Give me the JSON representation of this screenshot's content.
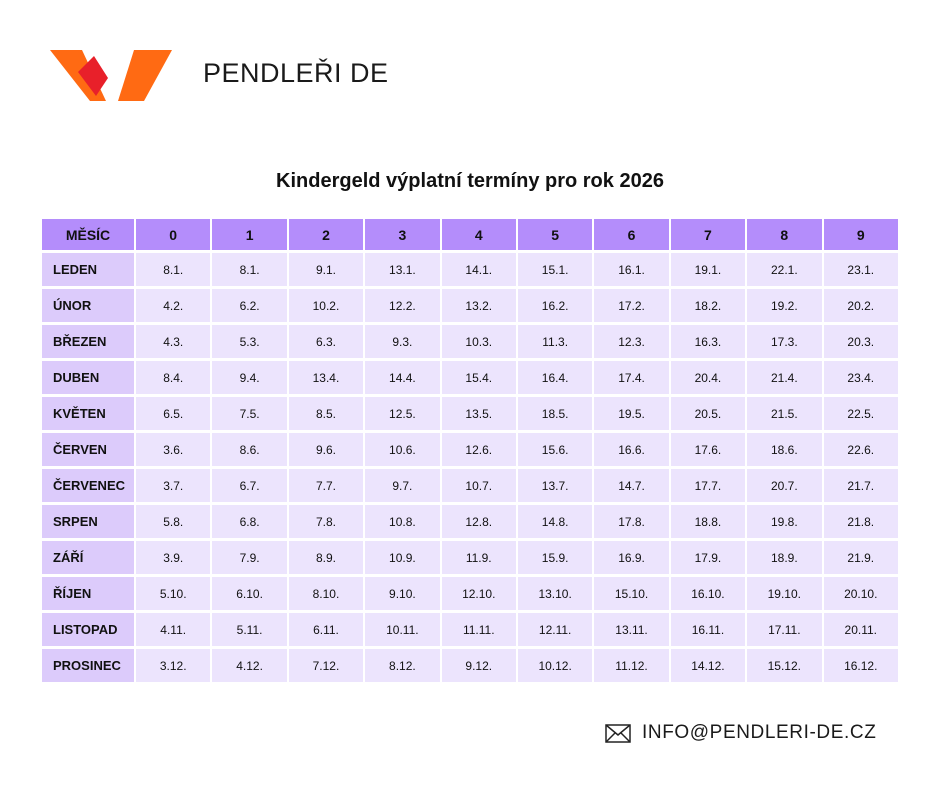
{
  "header": {
    "brand": "PENDLEŘI DE"
  },
  "title": "Kindergeld výplatní termíny pro rok 2026",
  "table": {
    "header": [
      "MĚSÍC",
      "0",
      "1",
      "2",
      "3",
      "4",
      "5",
      "6",
      "7",
      "8",
      "9"
    ],
    "rows": [
      [
        "LEDEN",
        "8.1.",
        "8.1.",
        "9.1.",
        "13.1.",
        "14.1.",
        "15.1.",
        "16.1.",
        "19.1.",
        "22.1.",
        "23.1."
      ],
      [
        "ÚNOR",
        "4.2.",
        "6.2.",
        "10.2.",
        "12.2.",
        "13.2.",
        "16.2.",
        "17.2.",
        "18.2.",
        "19.2.",
        "20.2."
      ],
      [
        "BŘEZEN",
        "4.3.",
        "5.3.",
        "6.3.",
        "9.3.",
        "10.3.",
        "11.3.",
        "12.3.",
        "16.3.",
        "17.3.",
        "20.3."
      ],
      [
        "DUBEN",
        "8.4.",
        "9.4.",
        "13.4.",
        "14.4.",
        "15.4.",
        "16.4.",
        "17.4.",
        "20.4.",
        "21.4.",
        "23.4."
      ],
      [
        "KVĚTEN",
        "6.5.",
        "7.5.",
        "8.5.",
        "12.5.",
        "13.5.",
        "18.5.",
        "19.5.",
        "20.5.",
        "21.5.",
        "22.5."
      ],
      [
        "ČERVEN",
        "3.6.",
        "8.6.",
        "9.6.",
        "10.6.",
        "12.6.",
        "15.6.",
        "16.6.",
        "17.6.",
        "18.6.",
        "22.6."
      ],
      [
        "ČERVENEC",
        "3.7.",
        "6.7.",
        "7.7.",
        "9.7.",
        "10.7.",
        "13.7.",
        "14.7.",
        "17.7.",
        "20.7.",
        "21.7."
      ],
      [
        "SRPEN",
        "5.8.",
        "6.8.",
        "7.8.",
        "10.8.",
        "12.8.",
        "14.8.",
        "17.8.",
        "18.8.",
        "19.8.",
        "21.8."
      ],
      [
        "ZÁŘÍ",
        "3.9.",
        "7.9.",
        "8.9.",
        "10.9.",
        "11.9.",
        "15.9.",
        "16.9.",
        "17.9.",
        "18.9.",
        "21.9."
      ],
      [
        "ŘÍJEN",
        "5.10.",
        "6.10.",
        "8.10.",
        "9.10.",
        "12.10.",
        "13.10.",
        "15.10.",
        "16.10.",
        "19.10.",
        "20.10."
      ],
      [
        "LISTOPAD",
        "4.11.",
        "5.11.",
        "6.11.",
        "10.11.",
        "11.11.",
        "12.11.",
        "13.11.",
        "16.11.",
        "17.11.",
        "20.11."
      ],
      [
        "PROSINEC",
        "3.12.",
        "4.12.",
        "7.12.",
        "8.12.",
        "9.12.",
        "10.12.",
        "11.12.",
        "14.12.",
        "15.12.",
        "16.12."
      ]
    ]
  },
  "footer": {
    "email": "INFO@PENDLERI-DE.CZ"
  }
}
